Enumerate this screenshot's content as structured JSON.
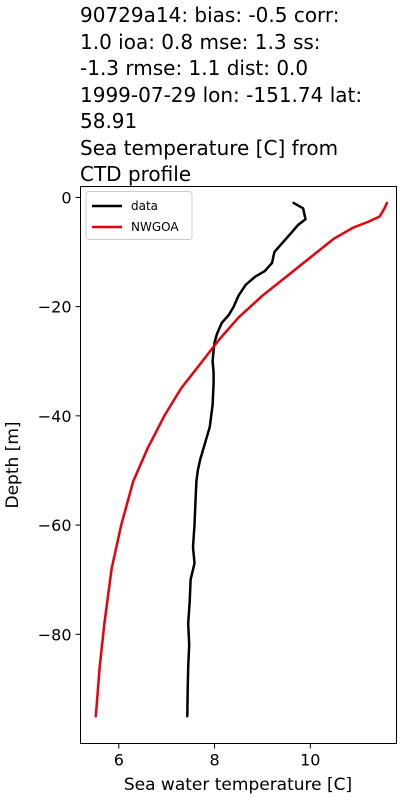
{
  "chart_data": {
    "type": "line",
    "title_lines": [
      "90729a14: bias: -0.5  corr:",
      "1.0  ioa: 0.8  mse: 1.3  ss:",
      "-1.3  rmse: 1.1  dist: 0.0",
      "1999-07-29 lon: -151.74 lat:",
      "58.91",
      "Sea temperature [C] from",
      "CTD profile"
    ],
    "xlabel": "Sea water temperature [C]",
    "ylabel": "Depth [m]",
    "xlim": [
      5.2,
      11.8
    ],
    "ylim": [
      -100,
      2
    ],
    "xticks": [
      6,
      8,
      10
    ],
    "yticks": [
      0,
      -20,
      -40,
      -60,
      -80
    ],
    "xtick_labels": [
      "6",
      "8",
      "10"
    ],
    "ytick_labels": [
      "0",
      "−20",
      "−40",
      "−60",
      "−80"
    ],
    "legend_position": "top-left",
    "series": [
      {
        "name": "data",
        "color": "#000000",
        "points": [
          [
            9.65,
            -1
          ],
          [
            9.85,
            -2
          ],
          [
            9.9,
            -4
          ],
          [
            9.75,
            -5
          ],
          [
            9.6,
            -6.5
          ],
          [
            9.4,
            -8.5
          ],
          [
            9.25,
            -10
          ],
          [
            9.2,
            -12
          ],
          [
            9.05,
            -13.5
          ],
          [
            8.85,
            -14.5
          ],
          [
            8.65,
            -16
          ],
          [
            8.5,
            -18
          ],
          [
            8.4,
            -20
          ],
          [
            8.3,
            -21.5
          ],
          [
            8.15,
            -23
          ],
          [
            8.05,
            -25
          ],
          [
            8.0,
            -26.5
          ],
          [
            7.98,
            -28
          ],
          [
            7.96,
            -30
          ],
          [
            7.98,
            -32
          ],
          [
            7.98,
            -34
          ],
          [
            7.96,
            -38
          ],
          [
            7.9,
            -42
          ],
          [
            7.8,
            -45
          ],
          [
            7.7,
            -48
          ],
          [
            7.65,
            -50
          ],
          [
            7.62,
            -52
          ],
          [
            7.6,
            -56
          ],
          [
            7.58,
            -60
          ],
          [
            7.55,
            -64
          ],
          [
            7.58,
            -67
          ],
          [
            7.5,
            -70
          ],
          [
            7.48,
            -74
          ],
          [
            7.45,
            -78
          ],
          [
            7.47,
            -82
          ],
          [
            7.45,
            -86
          ],
          [
            7.44,
            -90
          ],
          [
            7.43,
            -95
          ]
        ]
      },
      {
        "name": "NWGOA",
        "color": "#e8000b",
        "points": [
          [
            11.6,
            -1
          ],
          [
            11.55,
            -2
          ],
          [
            11.45,
            -3.5
          ],
          [
            11.2,
            -4.5
          ],
          [
            10.9,
            -5.5
          ],
          [
            10.5,
            -7.5
          ],
          [
            10.0,
            -11
          ],
          [
            9.5,
            -14.5
          ],
          [
            9.0,
            -18
          ],
          [
            8.5,
            -22
          ],
          [
            8.1,
            -26
          ],
          [
            7.7,
            -30.5
          ],
          [
            7.3,
            -35
          ],
          [
            6.95,
            -40
          ],
          [
            6.6,
            -46
          ],
          [
            6.3,
            -52
          ],
          [
            6.05,
            -60
          ],
          [
            5.85,
            -68
          ],
          [
            5.7,
            -78
          ],
          [
            5.6,
            -86
          ],
          [
            5.52,
            -95
          ]
        ]
      }
    ]
  }
}
